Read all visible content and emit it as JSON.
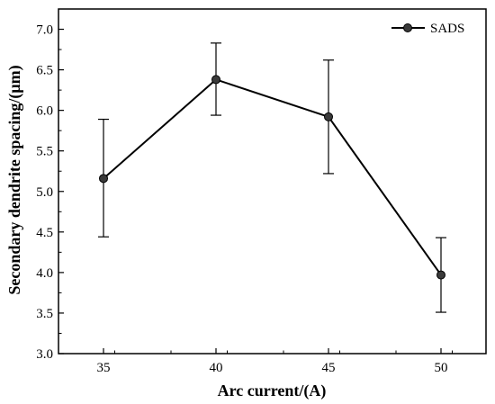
{
  "chart_data": {
    "type": "line",
    "title": "",
    "xlabel": "Arc current/(A)",
    "ylabel": "Secondary dendrite spacing/(μm)",
    "x": [
      35,
      40,
      45,
      50
    ],
    "xlim": [
      33.0,
      52.0
    ],
    "ylim": [
      3.0,
      7.25
    ],
    "xticks": [
      "35",
      "40",
      "45",
      "50"
    ],
    "yticks": [
      "3.0",
      "3.5",
      "4.0",
      "4.5",
      "5.0",
      "5.5",
      "6.0",
      "6.5",
      "7.0"
    ],
    "grid": false,
    "legend_position": "top-right",
    "series": [
      {
        "name": "SADS",
        "values": [
          5.16,
          6.38,
          5.92,
          3.97
        ],
        "error_upper": [
          5.89,
          6.83,
          6.62,
          4.43
        ],
        "error_lower": [
          4.44,
          5.94,
          5.22,
          3.51
        ],
        "color": "#000000"
      }
    ]
  }
}
